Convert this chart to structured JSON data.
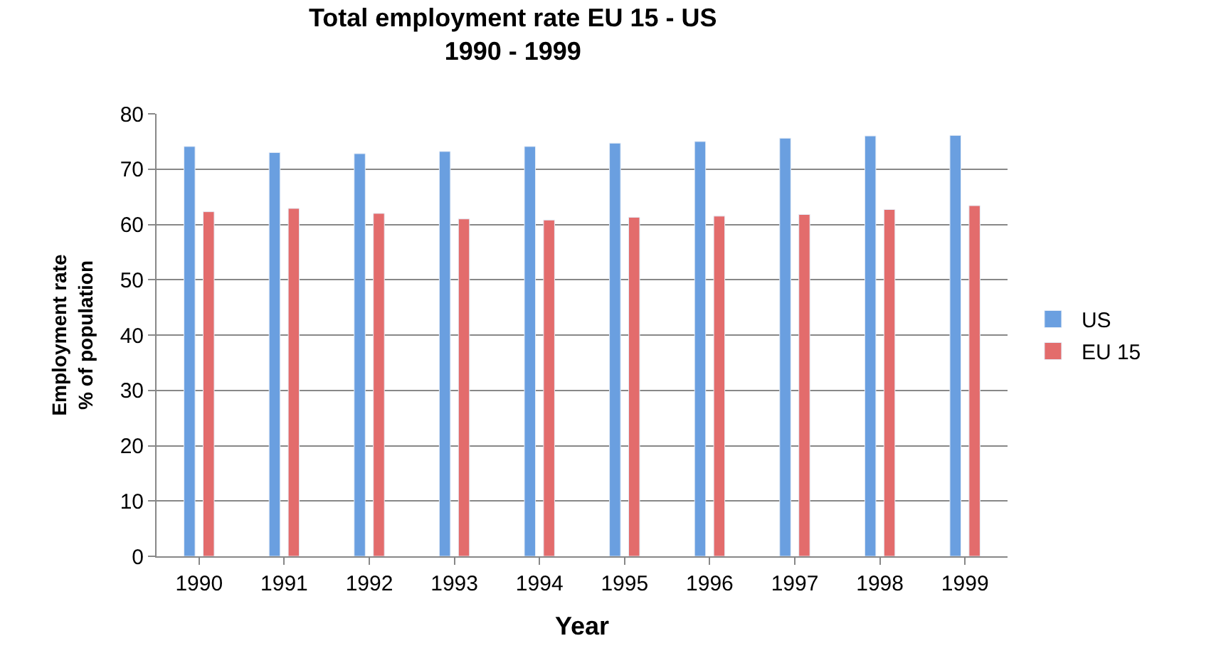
{
  "chart_data": {
    "type": "bar",
    "title": "Total employment rate EU 15 - US\n1990 - 1999",
    "xlabel": "Year",
    "ylabel": "Employment rate\n% of population",
    "categories": [
      "1990",
      "1991",
      "1992",
      "1993",
      "1994",
      "1995",
      "1996",
      "1997",
      "1998",
      "1999"
    ],
    "series": [
      {
        "name": "US",
        "color": "#6a9fe0",
        "values": [
          74.1,
          73.0,
          72.8,
          73.2,
          74.1,
          74.7,
          75.0,
          75.6,
          76.0,
          76.1
        ]
      },
      {
        "name": "EU 15",
        "color": "#e36c6c",
        "values": [
          62.3,
          62.9,
          62.0,
          61.0,
          60.8,
          61.3,
          61.5,
          61.8,
          62.7,
          63.4
        ]
      }
    ],
    "ylim": [
      0,
      80
    ],
    "yticks": [
      0,
      10,
      20,
      30,
      40,
      50,
      60,
      70,
      80
    ],
    "grid": "y",
    "legend": "right"
  }
}
